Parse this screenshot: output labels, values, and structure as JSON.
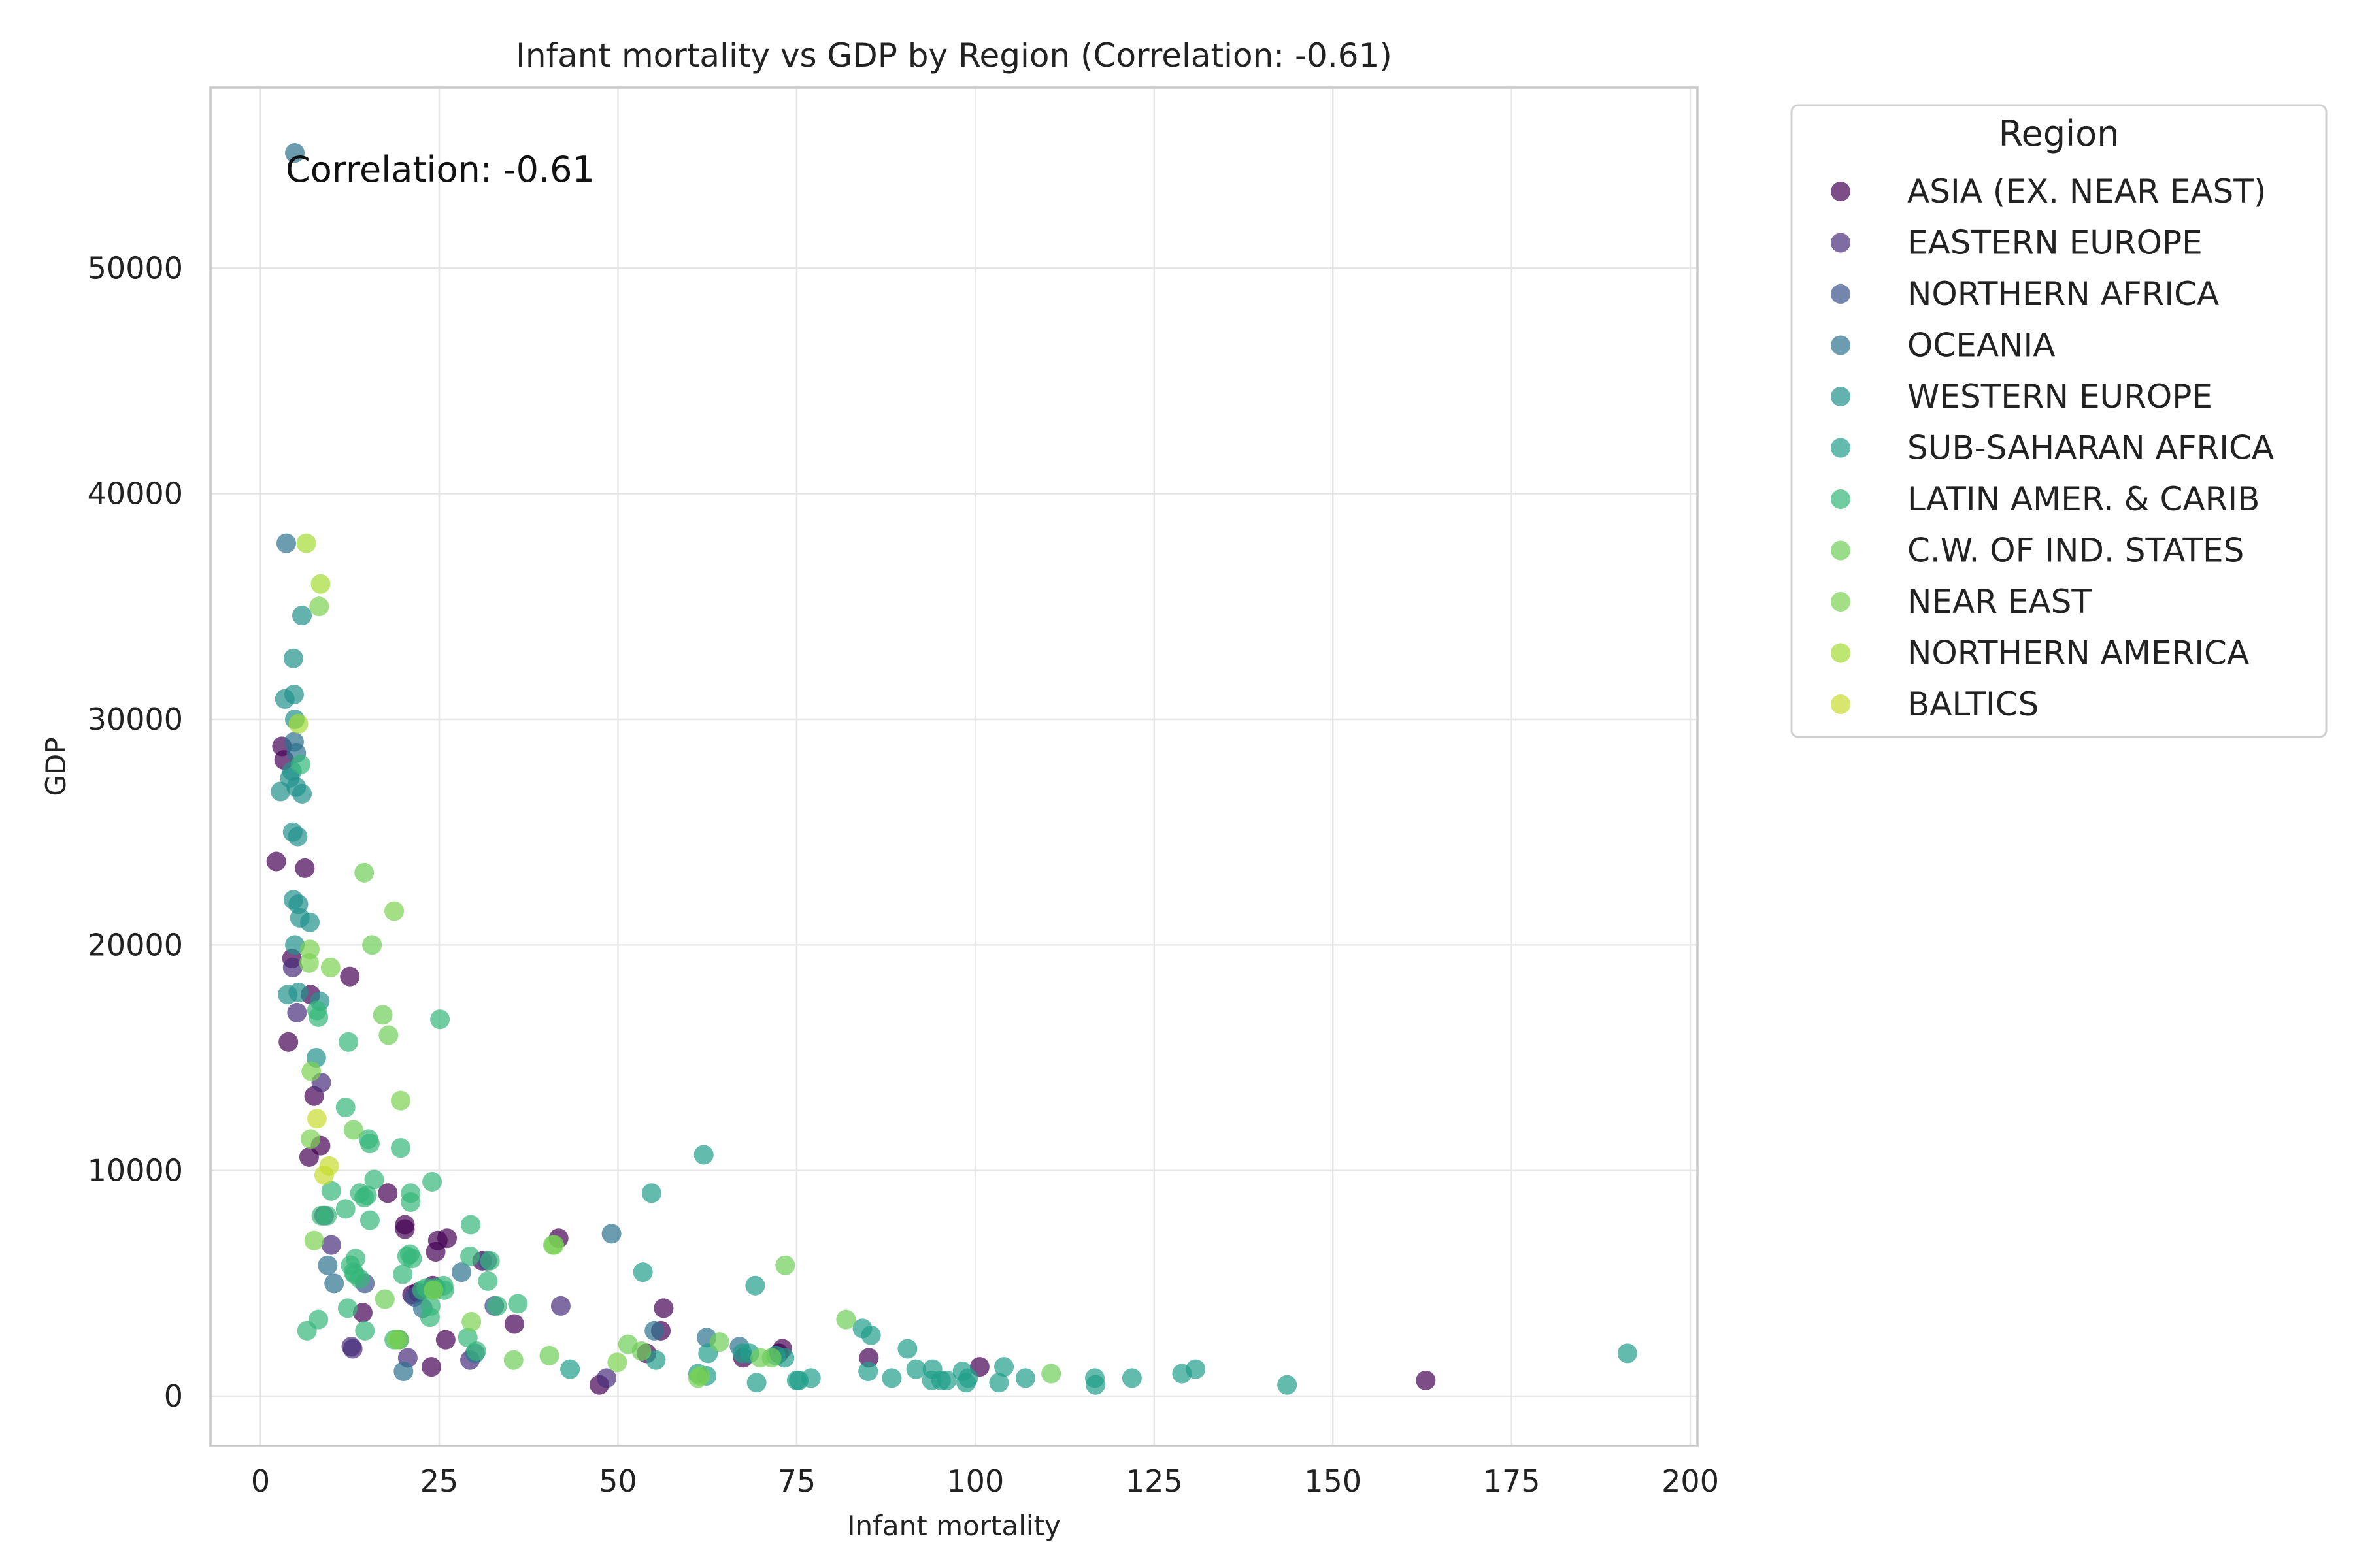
{
  "chart_data": {
    "type": "scatter",
    "title": "Infant mortality vs GDP by Region (Correlation: -0.61)",
    "xlabel": "Infant mortality",
    "ylabel": "GDP",
    "xlim": [
      -7,
      201
    ],
    "ylim": [
      -2200,
      58000
    ],
    "xticks": [
      0,
      25,
      50,
      75,
      100,
      125,
      150,
      175,
      200
    ],
    "yticks": [
      0,
      10000,
      20000,
      30000,
      40000,
      50000
    ],
    "grid": true,
    "annotation": "Correlation: -0.61",
    "legend_title": "Region",
    "legend_position": "outside-right",
    "series": [
      {
        "name": "ASIA (EX. NEAR EAST)",
        "color": "#440154",
        "points": [
          [
            3,
            28800
          ],
          [
            3.3,
            28200
          ],
          [
            2.2,
            23700
          ],
          [
            6.2,
            23400
          ],
          [
            4.4,
            19400
          ],
          [
            12.5,
            18600
          ],
          [
            7,
            17800
          ],
          [
            3.9,
            15700
          ],
          [
            7.5,
            13300
          ],
          [
            8.4,
            11100
          ],
          [
            6.8,
            10600
          ],
          [
            17.8,
            9000
          ],
          [
            20.2,
            7600
          ],
          [
            20.2,
            7400
          ],
          [
            26.1,
            7000
          ],
          [
            41.7,
            7000
          ],
          [
            24.8,
            6900
          ],
          [
            24.5,
            6400
          ],
          [
            22,
            4600
          ],
          [
            21.2,
            4500
          ],
          [
            24.1,
            4900
          ],
          [
            31,
            6000
          ],
          [
            35.5,
            3200
          ],
          [
            14.3,
            3700
          ],
          [
            25.9,
            2500
          ],
          [
            54,
            1900
          ],
          [
            56.4,
            3900
          ],
          [
            56,
            2900
          ],
          [
            73,
            2100
          ],
          [
            72.5,
            1900
          ],
          [
            85.1,
            1700
          ],
          [
            100.6,
            1300
          ],
          [
            67.5,
            1700
          ],
          [
            23.9,
            1300
          ],
          [
            47.4,
            500
          ],
          [
            163,
            700
          ]
        ]
      },
      {
        "name": "EASTERN EUROPE",
        "color": "#472d7b",
        "points": [
          [
            4.5,
            19000
          ],
          [
            5.1,
            17000
          ],
          [
            8.5,
            13900
          ],
          [
            9.9,
            6700
          ],
          [
            12.7,
            2200
          ],
          [
            12.9,
            2100
          ],
          [
            20.6,
            1700
          ],
          [
            29.3,
            1600
          ],
          [
            42,
            4000
          ],
          [
            48.4,
            800
          ],
          [
            8.9,
            8000
          ]
        ]
      },
      {
        "name": "NORTHERN AFRICA",
        "color": "#3b528b",
        "points": [
          [
            14.6,
            5000
          ],
          [
            24.5,
            4800
          ],
          [
            31.7,
            6000
          ],
          [
            21.5,
            4400
          ],
          [
            32.7,
            4000
          ]
        ]
      },
      {
        "name": "OCEANIA",
        "color": "#2c728e",
        "points": [
          [
            3.6,
            37800
          ],
          [
            4.7,
            29000
          ],
          [
            5,
            28500
          ],
          [
            9.4,
            5800
          ],
          [
            10.3,
            5000
          ],
          [
            20,
            1100
          ],
          [
            19.4,
            2500
          ],
          [
            28.1,
            5500
          ],
          [
            49.1,
            7200
          ],
          [
            55.1,
            2900
          ],
          [
            62.4,
            2600
          ],
          [
            30,
            1900
          ],
          [
            22.7,
            3900
          ],
          [
            67,
            2200
          ],
          [
            4.8,
            55100
          ]
        ]
      },
      {
        "name": "WESTERN EUROPE",
        "color": "#21918c",
        "points": [
          [
            4.6,
            32700
          ],
          [
            4.7,
            31100
          ],
          [
            3.4,
            30900
          ],
          [
            4.4,
            27700
          ],
          [
            4.1,
            27400
          ],
          [
            5,
            27000
          ],
          [
            2.8,
            26800
          ],
          [
            5.8,
            26700
          ],
          [
            4.5,
            25000
          ],
          [
            5.2,
            24800
          ],
          [
            4.6,
            22000
          ],
          [
            5.3,
            21800
          ],
          [
            5.5,
            21200
          ],
          [
            6.9,
            21000
          ],
          [
            4.8,
            20000
          ],
          [
            3.8,
            17800
          ],
          [
            8.3,
            17500
          ],
          [
            5.3,
            17900
          ],
          [
            5.8,
            34600
          ],
          [
            4.8,
            30000
          ],
          [
            7.8,
            15000
          ]
        ]
      },
      {
        "name": "SUB-SAHARAN AFRICA",
        "color": "#1f9e89",
        "points": [
          [
            62,
            10700
          ],
          [
            54.7,
            9000
          ],
          [
            53.5,
            5500
          ],
          [
            69.2,
            4900
          ],
          [
            62.6,
            1900
          ],
          [
            67.4,
            1900
          ],
          [
            68.4,
            1900
          ],
          [
            72.1,
            1800
          ],
          [
            73.3,
            1700
          ],
          [
            85,
            1100
          ],
          [
            84.2,
            3000
          ],
          [
            90.5,
            2100
          ],
          [
            91.7,
            1200
          ],
          [
            88.3,
            800
          ],
          [
            93.9,
            700
          ],
          [
            94,
            1200
          ],
          [
            95.2,
            700
          ],
          [
            96,
            700
          ],
          [
            98.2,
            1100
          ],
          [
            98.7,
            600
          ],
          [
            99,
            800
          ],
          [
            103.3,
            600
          ],
          [
            104,
            1300
          ],
          [
            107,
            800
          ],
          [
            116.7,
            800
          ],
          [
            116.8,
            500
          ],
          [
            121.9,
            800
          ],
          [
            128.9,
            1000
          ],
          [
            130.8,
            1200
          ],
          [
            143.6,
            500
          ],
          [
            191.2,
            1900
          ],
          [
            69.4,
            600
          ],
          [
            75.3,
            700
          ],
          [
            75,
            700
          ],
          [
            77,
            800
          ],
          [
            62.4,
            900
          ],
          [
            61.2,
            1000
          ],
          [
            55.3,
            1600
          ],
          [
            43.3,
            1200
          ],
          [
            85.4,
            2700
          ]
        ]
      },
      {
        "name": "LATIN AMER. & CARIB",
        "color": "#35b779",
        "points": [
          [
            7.9,
            17100
          ],
          [
            8.1,
            16800
          ],
          [
            12.3,
            15700
          ],
          [
            25.1,
            16700
          ],
          [
            11.9,
            12800
          ],
          [
            15.1,
            11400
          ],
          [
            15.3,
            11200
          ],
          [
            19.6,
            11000
          ],
          [
            9.9,
            9100
          ],
          [
            15.9,
            9600
          ],
          [
            8.5,
            8000
          ],
          [
            9.3,
            8000
          ],
          [
            13.9,
            9000
          ],
          [
            14.9,
            8900
          ],
          [
            21,
            9000
          ],
          [
            21,
            8600
          ],
          [
            24,
            9500
          ],
          [
            11.9,
            8300
          ],
          [
            15.3,
            7800
          ],
          [
            29.4,
            7600
          ],
          [
            20.9,
            6300
          ],
          [
            21.2,
            6100
          ],
          [
            20.5,
            6200
          ],
          [
            13.3,
            6100
          ],
          [
            12.6,
            5800
          ],
          [
            13.2,
            5400
          ],
          [
            19.9,
            5400
          ],
          [
            23.2,
            4800
          ],
          [
            25.6,
            4900
          ],
          [
            25.7,
            4700
          ],
          [
            24.2,
            4700
          ],
          [
            23.7,
            3500
          ],
          [
            29,
            2600
          ],
          [
            31.8,
            5100
          ],
          [
            32.1,
            6000
          ],
          [
            33.1,
            4000
          ],
          [
            36,
            4100
          ],
          [
            8.1,
            3400
          ],
          [
            6.5,
            2900
          ],
          [
            14.6,
            2900
          ],
          [
            12.2,
            3900
          ],
          [
            14.5,
            8800
          ],
          [
            23.8,
            4000
          ],
          [
            24.6,
            4800
          ],
          [
            18.7,
            2500
          ],
          [
            30.2,
            2000
          ],
          [
            22.6,
            4700
          ],
          [
            13.9,
            5200
          ],
          [
            29.3,
            6200
          ],
          [
            5.6,
            28000
          ],
          [
            13,
            5500
          ]
        ]
      },
      {
        "name": "C.W. OF IND. STATES",
        "color": "#6ece58",
        "points": [
          [
            14.5,
            23200
          ],
          [
            17.9,
            16000
          ],
          [
            17.1,
            16900
          ],
          [
            40.9,
            6700
          ],
          [
            40.4,
            1800
          ],
          [
            53.3,
            2000
          ],
          [
            51.4,
            2300
          ],
          [
            61.2,
            800
          ],
          [
            64.2,
            2400
          ],
          [
            81.9,
            3400
          ],
          [
            73.4,
            5800
          ],
          [
            69.9,
            1700
          ],
          [
            71.5,
            1700
          ],
          [
            110.6,
            1000
          ],
          [
            35.4,
            1600
          ],
          [
            13,
            11800
          ],
          [
            19.4,
            2500
          ],
          [
            17.4,
            4300
          ],
          [
            15.6,
            20000
          ]
        ]
      },
      {
        "name": "NEAR EAST",
        "color": "#7ad151",
        "points": [
          [
            8.2,
            35000
          ],
          [
            6.8,
            19200
          ],
          [
            6.9,
            19800
          ],
          [
            9.8,
            19000
          ],
          [
            18.7,
            21500
          ],
          [
            7.1,
            14400
          ],
          [
            7,
            11400
          ],
          [
            19.6,
            13100
          ],
          [
            41.1,
            6700
          ],
          [
            29.5,
            3300
          ],
          [
            49.9,
            1500
          ],
          [
            61.5,
            900
          ],
          [
            7.5,
            6900
          ],
          [
            19,
            2500
          ],
          [
            24.2,
            4700
          ]
        ]
      },
      {
        "name": "NORTHERN AMERICA",
        "color": "#a2db34",
        "points": [
          [
            6.4,
            37800
          ],
          [
            8.4,
            36000
          ],
          [
            5.3,
            29800
          ]
        ]
      },
      {
        "name": "BALTICS",
        "color": "#c8dc2f",
        "points": [
          [
            7.9,
            12300
          ],
          [
            9.6,
            10200
          ],
          [
            8.9,
            9800
          ]
        ]
      }
    ]
  }
}
